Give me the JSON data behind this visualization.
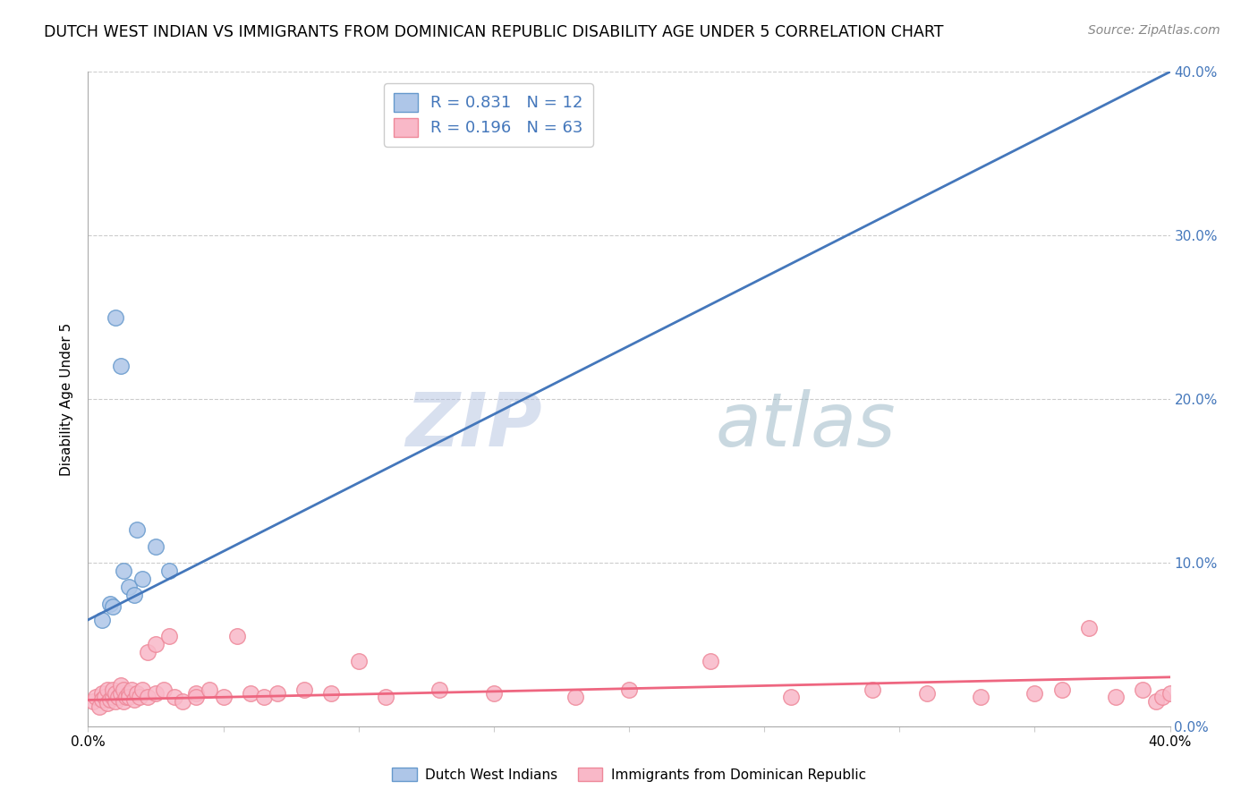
{
  "title": "DUTCH WEST INDIAN VS IMMIGRANTS FROM DOMINICAN REPUBLIC DISABILITY AGE UNDER 5 CORRELATION CHART",
  "source": "Source: ZipAtlas.com",
  "ylabel": "Disability Age Under 5",
  "xlim": [
    0.0,
    0.4
  ],
  "ylim": [
    0.0,
    0.4
  ],
  "yticks": [
    0.0,
    0.1,
    0.2,
    0.3,
    0.4
  ],
  "xticks": [
    0.0,
    0.05,
    0.1,
    0.15,
    0.2,
    0.25,
    0.3,
    0.35,
    0.4
  ],
  "right_ytick_labels": [
    "0.0%",
    "10.0%",
    "20.0%",
    "30.0%",
    "40.0%"
  ],
  "blue_scatter_x": [
    0.005,
    0.008,
    0.009,
    0.01,
    0.012,
    0.013,
    0.015,
    0.017,
    0.018,
    0.02,
    0.025,
    0.03
  ],
  "blue_scatter_y": [
    0.065,
    0.075,
    0.073,
    0.25,
    0.22,
    0.095,
    0.085,
    0.08,
    0.12,
    0.09,
    0.11,
    0.095
  ],
  "pink_scatter_x": [
    0.002,
    0.003,
    0.004,
    0.005,
    0.005,
    0.006,
    0.007,
    0.007,
    0.008,
    0.009,
    0.009,
    0.01,
    0.01,
    0.011,
    0.012,
    0.012,
    0.013,
    0.013,
    0.014,
    0.015,
    0.015,
    0.016,
    0.017,
    0.018,
    0.019,
    0.02,
    0.022,
    0.022,
    0.025,
    0.025,
    0.028,
    0.03,
    0.032,
    0.035,
    0.04,
    0.04,
    0.045,
    0.05,
    0.055,
    0.06,
    0.065,
    0.07,
    0.08,
    0.09,
    0.1,
    0.11,
    0.13,
    0.15,
    0.18,
    0.2,
    0.23,
    0.26,
    0.29,
    0.31,
    0.33,
    0.35,
    0.36,
    0.37,
    0.38,
    0.39,
    0.395,
    0.397,
    0.4
  ],
  "pink_scatter_y": [
    0.015,
    0.018,
    0.012,
    0.02,
    0.016,
    0.018,
    0.014,
    0.022,
    0.016,
    0.018,
    0.022,
    0.015,
    0.02,
    0.018,
    0.02,
    0.025,
    0.015,
    0.022,
    0.018,
    0.02,
    0.018,
    0.022,
    0.016,
    0.02,
    0.018,
    0.022,
    0.045,
    0.018,
    0.05,
    0.02,
    0.022,
    0.055,
    0.018,
    0.015,
    0.02,
    0.018,
    0.022,
    0.018,
    0.055,
    0.02,
    0.018,
    0.02,
    0.022,
    0.02,
    0.04,
    0.018,
    0.022,
    0.02,
    0.018,
    0.022,
    0.04,
    0.018,
    0.022,
    0.02,
    0.018,
    0.02,
    0.022,
    0.06,
    0.018,
    0.022,
    0.015,
    0.018,
    0.02
  ],
  "blue_line_x0": 0.0,
  "blue_line_x1": 0.4,
  "blue_line_y0": 0.065,
  "blue_line_y1": 0.4,
  "pink_line_x0": 0.0,
  "pink_line_x1": 0.4,
  "pink_line_y0": 0.016,
  "pink_line_y1": 0.03,
  "blue_scatter_facecolor": "#AEC6E8",
  "blue_scatter_edgecolor": "#6699CC",
  "blue_line_color": "#4477BB",
  "pink_scatter_facecolor": "#F9B8C8",
  "pink_scatter_edgecolor": "#EE8899",
  "pink_line_color": "#EE6680",
  "legend_r_blue": "0.831",
  "legend_n_blue": "12",
  "legend_r_pink": "0.196",
  "legend_n_pink": "63",
  "watermark_zip": "ZIP",
  "watermark_atlas": "atlas",
  "label_dutch": "Dutch West Indians",
  "label_dominican": "Immigrants from Dominican Republic",
  "grid_color": "#CCCCCC",
  "background_color": "#FFFFFF",
  "title_fontsize": 12.5,
  "source_fontsize": 10,
  "axis_label_fontsize": 11,
  "legend_fontsize": 13,
  "tick_label_fontsize": 11,
  "right_tick_color": "#4477BB"
}
